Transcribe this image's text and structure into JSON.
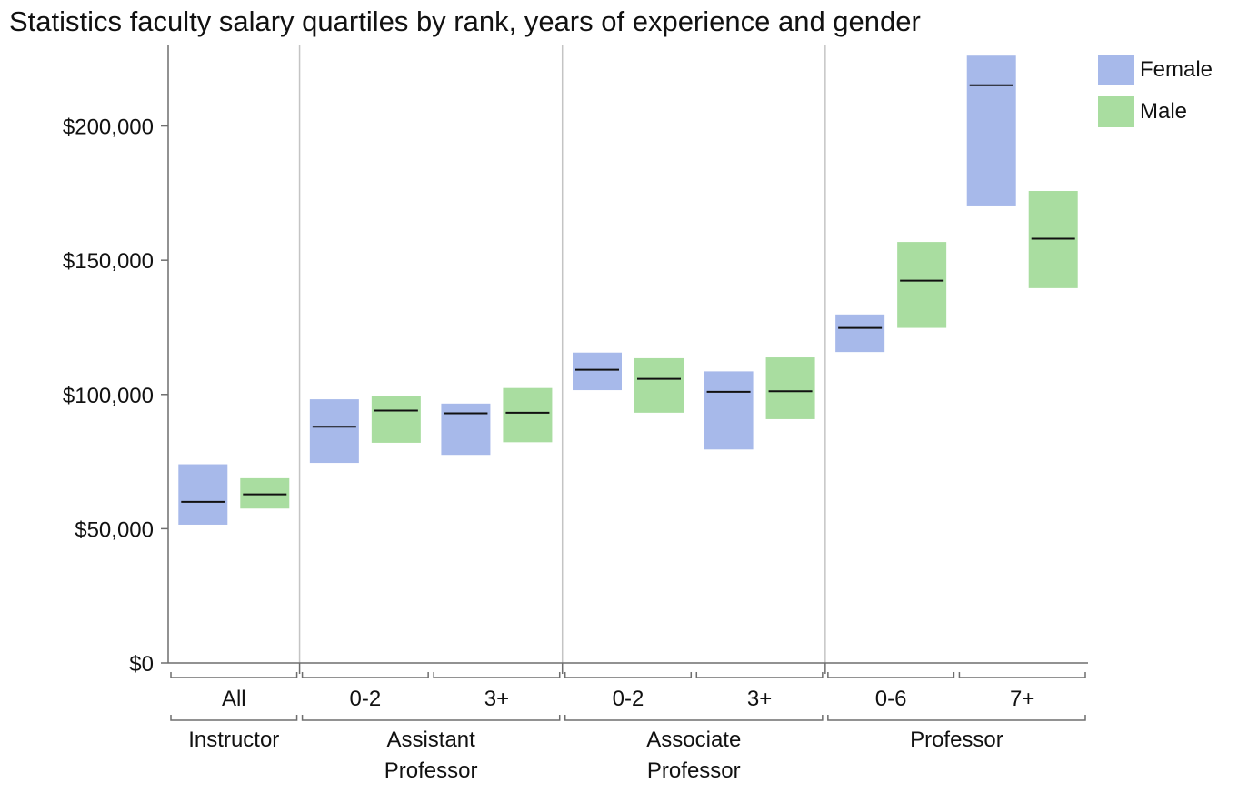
{
  "chart_data": {
    "type": "bar",
    "title": "Statistics faculty salary quartiles by rank, years of experience and gender",
    "ylim": [
      0,
      230000
    ],
    "yticks": [
      {
        "value": 0,
        "label": "$0"
      },
      {
        "value": 50000,
        "label": "$50,000"
      },
      {
        "value": 100000,
        "label": "$100,000"
      },
      {
        "value": 150000,
        "label": "$150,000"
      },
      {
        "value": 200000,
        "label": "$200,000"
      }
    ],
    "legend": {
      "position": "top-right",
      "items": [
        {
          "name": "Female",
          "color": "#a7b9ea"
        },
        {
          "name": "Male",
          "color": "#a9dda0"
        }
      ]
    },
    "groups": [
      {
        "label": "Instructor",
        "subgroups": [
          {
            "label": "All",
            "female": {
              "q1": 51500,
              "median": 60000,
              "q3": 74000
            },
            "male": {
              "q1": 57500,
              "median": 62800,
              "q3": 68800
            }
          }
        ]
      },
      {
        "label": "Assistant Professor",
        "subgroups": [
          {
            "label": "0-2",
            "female": {
              "q1": 74500,
              "median": 88000,
              "q3": 98200
            },
            "male": {
              "q1": 82000,
              "median": 94000,
              "q3": 99400
            }
          },
          {
            "label": "3+",
            "female": {
              "q1": 77500,
              "median": 93000,
              "q3": 96600
            },
            "male": {
              "q1": 82200,
              "median": 93200,
              "q3": 102400
            }
          }
        ]
      },
      {
        "label": "Associate Professor",
        "subgroups": [
          {
            "label": "0-2",
            "female": {
              "q1": 101600,
              "median": 109200,
              "q3": 115600
            },
            "male": {
              "q1": 93200,
              "median": 105800,
              "q3": 113500
            }
          },
          {
            "label": "3+",
            "female": {
              "q1": 79500,
              "median": 101000,
              "q3": 108600
            },
            "male": {
              "q1": 90800,
              "median": 101200,
              "q3": 113800
            }
          }
        ]
      },
      {
        "label": "Professor",
        "subgroups": [
          {
            "label": "0-6",
            "female": {
              "q1": 115800,
              "median": 124800,
              "q3": 129800
            },
            "male": {
              "q1": 124800,
              "median": 142400,
              "q3": 156800
            }
          },
          {
            "label": "7+",
            "female": {
              "q1": 170400,
              "median": 215200,
              "q3": 226200
            },
            "male": {
              "q1": 139600,
              "median": 158000,
              "q3": 175800
            }
          }
        ]
      }
    ]
  }
}
